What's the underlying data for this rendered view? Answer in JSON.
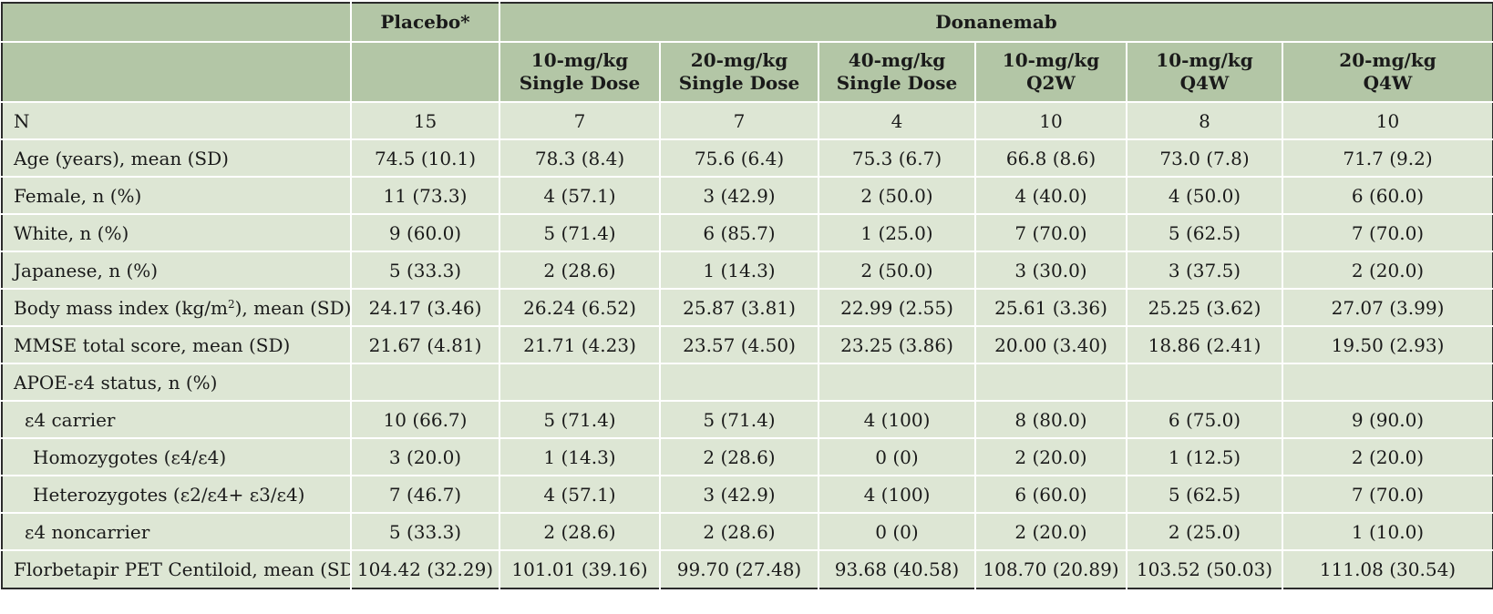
{
  "header": {
    "placebo": "Placebo*",
    "group": "Donanemab",
    "arms": [
      {
        "line1": "10-mg/kg",
        "line2": "Single Dose"
      },
      {
        "line1": "20-mg/kg",
        "line2": "Single Dose"
      },
      {
        "line1": "40-mg/kg",
        "line2": "Single Dose"
      },
      {
        "line1": "10-mg/kg",
        "line2": "Q2W"
      },
      {
        "line1": "10-mg/kg",
        "line2": "Q4W"
      },
      {
        "line1": "20-mg/kg",
        "line2": "Q4W"
      }
    ]
  },
  "rows": [
    {
      "label": "N",
      "indent": 0,
      "cells": [
        "15",
        "7",
        "7",
        "4",
        "10",
        "8",
        "10"
      ]
    },
    {
      "label": "Age (years), mean (SD)",
      "indent": 0,
      "cells": [
        "74.5 (10.1)",
        "78.3 (8.4)",
        "75.6 (6.4)",
        "75.3 (6.7)",
        "66.8 (8.6)",
        "73.0 (7.8)",
        "71.7 (9.2)"
      ]
    },
    {
      "label": "Female, n (%)",
      "indent": 0,
      "cells": [
        "11 (73.3)",
        "4 (57.1)",
        "3 (42.9)",
        "2 (50.0)",
        "4 (40.0)",
        "4 (50.0)",
        "6 (60.0)"
      ]
    },
    {
      "label": "White, n (%)",
      "indent": 0,
      "cells": [
        "9 (60.0)",
        "5 (71.4)",
        "6 (85.7)",
        "1 (25.0)",
        "7 (70.0)",
        "5 (62.5)",
        "7 (70.0)"
      ]
    },
    {
      "label": "Japanese, n (%)",
      "indent": 0,
      "cells": [
        "5 (33.3)",
        "2 (28.6)",
        "1 (14.3)",
        "2 (50.0)",
        "3 (30.0)",
        "3 (37.5)",
        "2 (20.0)"
      ]
    },
    {
      "label_pre": "Body mass index (kg/m",
      "label_sup": "2",
      "label_post": "), mean (SD)",
      "indent": 0,
      "cells": [
        "24.17 (3.46)",
        "26.24 (6.52)",
        "25.87 (3.81)",
        "22.99 (2.55)",
        "25.61 (3.36)",
        "25.25 (3.62)",
        "27.07 (3.99)"
      ]
    },
    {
      "label": "MMSE total score, mean (SD)",
      "indent": 0,
      "cells": [
        "21.67 (4.81)",
        "21.71 (4.23)",
        "23.57 (4.50)",
        "23.25 (3.86)",
        "20.00 (3.40)",
        "18.86 (2.41)",
        "19.50 (2.93)"
      ]
    },
    {
      "label": "APOE-ε4 status, n (%)",
      "indent": 0,
      "cells": [
        "",
        "",
        "",
        "",
        "",
        "",
        ""
      ]
    },
    {
      "label": "ε4 carrier",
      "indent": 1,
      "cells": [
        "10 (66.7)",
        "5 (71.4)",
        "5 (71.4)",
        "4 (100)",
        "8 (80.0)",
        "6 (75.0)",
        "9 (90.0)"
      ]
    },
    {
      "label": "Homozygotes (ε4/ε4)",
      "indent": 2,
      "cells": [
        "3 (20.0)",
        "1 (14.3)",
        "2 (28.6)",
        "0 (0)",
        "2 (20.0)",
        "1 (12.5)",
        "2 (20.0)"
      ]
    },
    {
      "label": "Heterozygotes (ε2/ε4+ ε3/ε4)",
      "indent": 2,
      "cells": [
        "7 (46.7)",
        "4 (57.1)",
        "3 (42.9)",
        "4 (100)",
        "6 (60.0)",
        "5 (62.5)",
        "7 (70.0)"
      ]
    },
    {
      "label": "ε4 noncarrier",
      "indent": 1,
      "cells": [
        "5 (33.3)",
        "2 (28.6)",
        "2 (28.6)",
        "0 (0)",
        "2 (20.0)",
        "2 (25.0)",
        "1 (10.0)"
      ]
    },
    {
      "label": "Florbetapir PET Centiloid, mean (SD)",
      "indent": 0,
      "cells": [
        "104.42 (32.29)",
        "101.01 (39.16)",
        "99.70 (27.48)",
        "93.68 (40.58)",
        "108.70 (20.89)",
        "103.52 (50.03)",
        "111.08 (30.54)"
      ]
    }
  ]
}
